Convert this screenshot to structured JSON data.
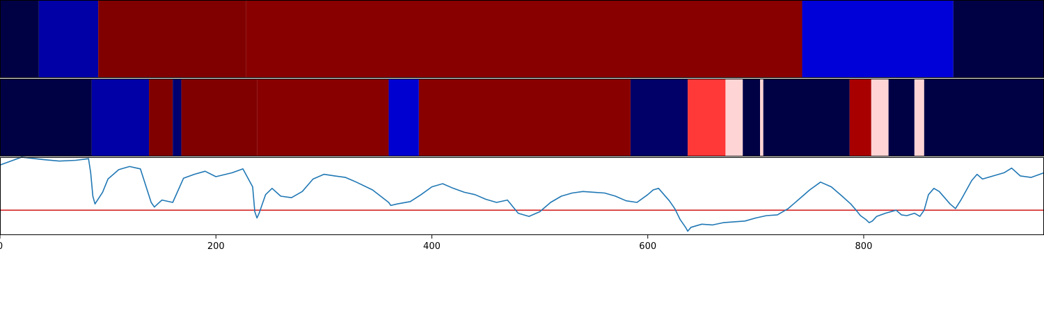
{
  "chart_data": {
    "type": "heatmap",
    "x_range": [
      0,
      967
    ],
    "x_ticks": [
      {
        "value": 0,
        "label": "0"
      },
      {
        "value": 200,
        "label": "200"
      },
      {
        "value": 400,
        "label": "400"
      },
      {
        "value": 600,
        "label": "600"
      },
      {
        "value": 800,
        "label": "800"
      }
    ],
    "grid": false,
    "panels": [
      {
        "type": "heatmap",
        "segments": [
          {
            "start": 0,
            "end": 36,
            "color": "#000045"
          },
          {
            "start": 36,
            "end": 91,
            "color": "#0000a6"
          },
          {
            "start": 91,
            "end": 228,
            "color": "#800000"
          },
          {
            "start": 228,
            "end": 743,
            "color": "#880000"
          },
          {
            "start": 743,
            "end": 883,
            "color": "#0000d8"
          },
          {
            "start": 883,
            "end": 967,
            "color": "#000045"
          }
        ]
      },
      {
        "type": "heatmap",
        "segments": [
          {
            "start": 0,
            "end": 85,
            "color": "#000045"
          },
          {
            "start": 85,
            "end": 138,
            "color": "#0000a6"
          },
          {
            "start": 138,
            "end": 160,
            "color": "#800000"
          },
          {
            "start": 160,
            "end": 168,
            "color": "#000070"
          },
          {
            "start": 168,
            "end": 238,
            "color": "#800000"
          },
          {
            "start": 238,
            "end": 360,
            "color": "#880000"
          },
          {
            "start": 360,
            "end": 388,
            "color": "#0000d0"
          },
          {
            "start": 388,
            "end": 584,
            "color": "#880000"
          },
          {
            "start": 584,
            "end": 637,
            "color": "#000068"
          },
          {
            "start": 637,
            "end": 672,
            "color": "#ff3838"
          },
          {
            "start": 672,
            "end": 688,
            "color": "#ffd4d4"
          },
          {
            "start": 688,
            "end": 704,
            "color": "#000045"
          },
          {
            "start": 704,
            "end": 707,
            "color": "#ffd4d4"
          },
          {
            "start": 707,
            "end": 787,
            "color": "#000045"
          },
          {
            "start": 787,
            "end": 807,
            "color": "#a80000"
          },
          {
            "start": 807,
            "end": 823,
            "color": "#ffd4d4"
          },
          {
            "start": 823,
            "end": 847,
            "color": "#000045"
          },
          {
            "start": 847,
            "end": 856,
            "color": "#ffd4d4"
          },
          {
            "start": 856,
            "end": 967,
            "color": "#000045"
          }
        ]
      },
      {
        "type": "line",
        "series": [
          {
            "color": "#1f77b4",
            "x": [
              0,
              20,
              40,
              55,
              70,
              82,
              84,
              86,
              88,
              95,
              100,
              110,
              120,
              130,
              140,
              143,
              146,
              150,
              160,
              170,
              180,
              190,
              200,
              215,
              225,
              234,
              236,
              238,
              240,
              243,
              246,
              252,
              260,
              270,
              280,
              290,
              300,
              310,
              320,
              330,
              345,
              360,
              362,
              368,
              380,
              390,
              400,
              410,
              420,
              430,
              440,
              450,
              460,
              470,
              480,
              490,
              500,
              510,
              520,
              530,
              540,
              550,
              560,
              570,
              580,
              590,
              600,
              605,
              610,
              615,
              620,
              625,
              630,
              635,
              637,
              640,
              650,
              660,
              670,
              690,
              700,
              710,
              720,
              730,
              740,
              750,
              760,
              770,
              780,
              788,
              793,
              797,
              802,
              805,
              808,
              812,
              820,
              830,
              835,
              840,
              847,
              852,
              856,
              860,
              865,
              870,
              880,
              885,
              890,
              900,
              905,
              910,
              920,
              930,
              937,
              945,
              955,
              967
            ],
            "y": [
              0.9,
              1.0,
              0.97,
              0.95,
              0.96,
              0.98,
              0.8,
              0.5,
              0.4,
              0.55,
              0.72,
              0.84,
              0.88,
              0.85,
              0.42,
              0.36,
              0.4,
              0.45,
              0.42,
              0.73,
              0.78,
              0.82,
              0.75,
              0.8,
              0.85,
              0.62,
              0.3,
              0.22,
              0.28,
              0.4,
              0.52,
              0.6,
              0.5,
              0.48,
              0.56,
              0.72,
              0.78,
              0.76,
              0.74,
              0.68,
              0.58,
              0.42,
              0.38,
              0.4,
              0.43,
              0.52,
              0.62,
              0.66,
              0.6,
              0.55,
              0.52,
              0.46,
              0.42,
              0.45,
              0.28,
              0.24,
              0.3,
              0.42,
              0.5,
              0.54,
              0.56,
              0.55,
              0.54,
              0.5,
              0.44,
              0.42,
              0.52,
              0.58,
              0.6,
              0.52,
              0.44,
              0.34,
              0.2,
              0.1,
              0.05,
              0.1,
              0.14,
              0.13,
              0.16,
              0.18,
              0.22,
              0.25,
              0.26,
              0.34,
              0.46,
              0.58,
              0.68,
              0.62,
              0.5,
              0.4,
              0.32,
              0.25,
              0.2,
              0.16,
              0.18,
              0.24,
              0.28,
              0.32,
              0.26,
              0.25,
              0.28,
              0.24,
              0.32,
              0.52,
              0.6,
              0.56,
              0.4,
              0.34,
              0.45,
              0.7,
              0.78,
              0.72,
              0.76,
              0.8,
              0.86,
              0.76,
              0.74,
              0.8
            ]
          }
        ],
        "ylim": [
          0,
          1
        ],
        "reference_line": {
          "y": 0.32,
          "color": "#d62728"
        }
      }
    ]
  }
}
